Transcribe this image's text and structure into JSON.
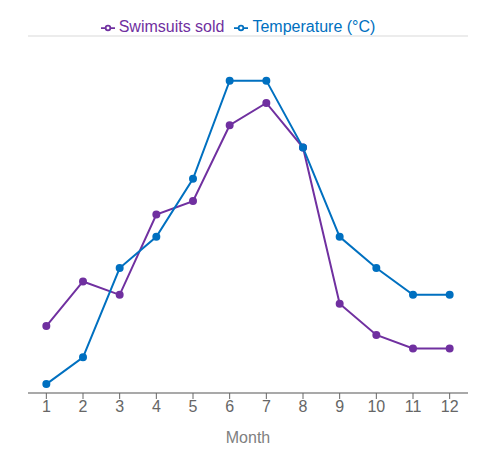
{
  "chart_data": {
    "type": "line",
    "xlabel": "Month",
    "x": [
      1,
      2,
      3,
      4,
      5,
      6,
      7,
      8,
      9,
      10,
      11,
      12
    ],
    "series": [
      {
        "name": "Swimsuits sold",
        "color": "#7030a0",
        "marker": "circle",
        "values": [
          15,
          25,
          22,
          40,
          43,
          60,
          65,
          55,
          20,
          13,
          10,
          10
        ]
      },
      {
        "name": "Temperature (°C)",
        "color": "#0070c0",
        "marker": "circle",
        "values": [
          2,
          8,
          28,
          35,
          48,
          70,
          70,
          55,
          35,
          28,
          22,
          22
        ]
      }
    ],
    "xlim": [
      0.5,
      12.5
    ],
    "xticks": [
      1,
      2,
      3,
      4,
      5,
      6,
      7,
      8,
      9,
      10,
      11,
      12
    ],
    "ylim": [
      0,
      80
    ],
    "yticks": [
      0,
      13.333333333333334,
      26.666666666666668,
      40,
      53.333333333333336,
      66.66666666666667,
      80
    ],
    "grid": true,
    "legend": "top",
    "tick_labels": "x"
  }
}
